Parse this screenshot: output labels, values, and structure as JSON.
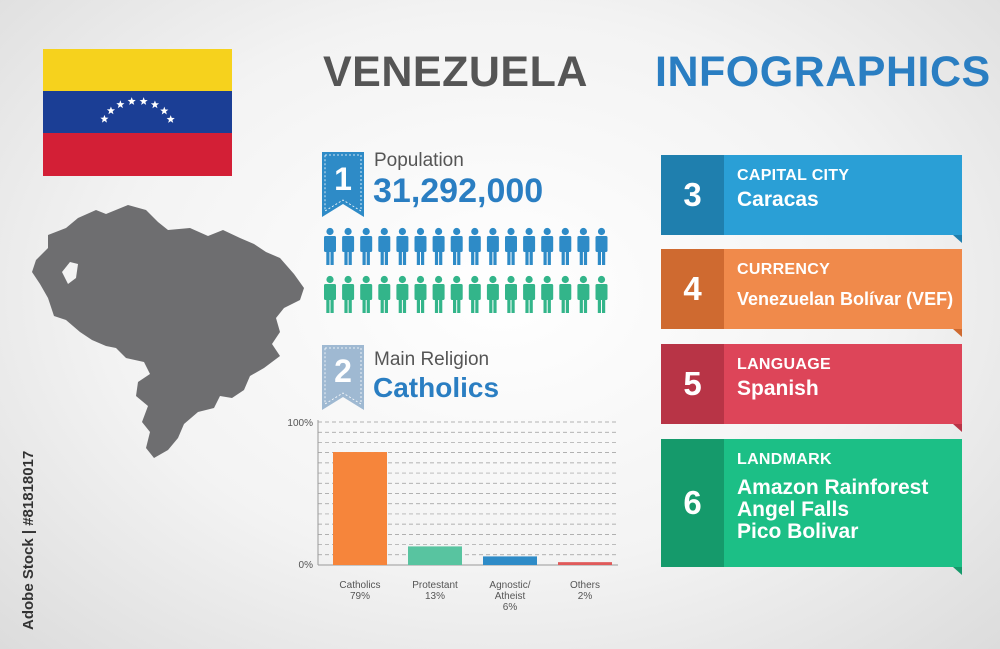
{
  "header": {
    "country": "VENEZUELA",
    "infographics": "INFOGRAPHICS"
  },
  "colors": {
    "flag_yellow": "#f6d21d",
    "flag_blue": "#1b3e95",
    "flag_red": "#d31f36",
    "title_gray": "#555555",
    "accent_blue": "#2a7ec2",
    "people_blue": "#2e8bc7",
    "people_green": "#33b58a",
    "card3": "#2a9fd6",
    "card4": "#f08a4b",
    "card5": "#dd4559",
    "card6": "#1cbf86"
  },
  "population": {
    "number": "1",
    "label": "Population",
    "value": "31,292,000"
  },
  "religion": {
    "number": "2",
    "label": "Main Religion",
    "value": "Catholics"
  },
  "chart_data": {
    "type": "bar",
    "categories": [
      "Catholics",
      "Protestant",
      "Agnostic/ Atheist",
      "Others"
    ],
    "category_lines": [
      [
        "Catholics"
      ],
      [
        "Protestant"
      ],
      [
        "Agnostic/",
        "Atheist"
      ],
      [
        "Others"
      ]
    ],
    "value_labels": [
      "79%",
      "13%",
      "6%",
      "2%"
    ],
    "values": [
      79,
      13,
      6,
      2
    ],
    "colors": [
      "#f6853b",
      "#58c4a0",
      "#2e8bc7",
      "#e05a5a"
    ],
    "ylim": [
      0,
      100
    ],
    "yticks": [
      "100%",
      "0%"
    ],
    "grid": true
  },
  "cards": [
    {
      "number": "3",
      "heading": "CAPITAL CITY",
      "lines": [
        "Caracas"
      ]
    },
    {
      "number": "4",
      "heading": "CURRENCY",
      "lines": [
        "Venezuelan Bolívar (VEF)"
      ]
    },
    {
      "number": "5",
      "heading": "LANGUAGE",
      "lines": [
        "Spanish"
      ]
    },
    {
      "number": "6",
      "heading": "LANDMARK",
      "lines": [
        "Amazon Rainforest",
        "Angel Falls",
        "Pico Bolivar"
      ]
    }
  ],
  "watermark": {
    "text": "Adobe Stock | #81818017"
  }
}
